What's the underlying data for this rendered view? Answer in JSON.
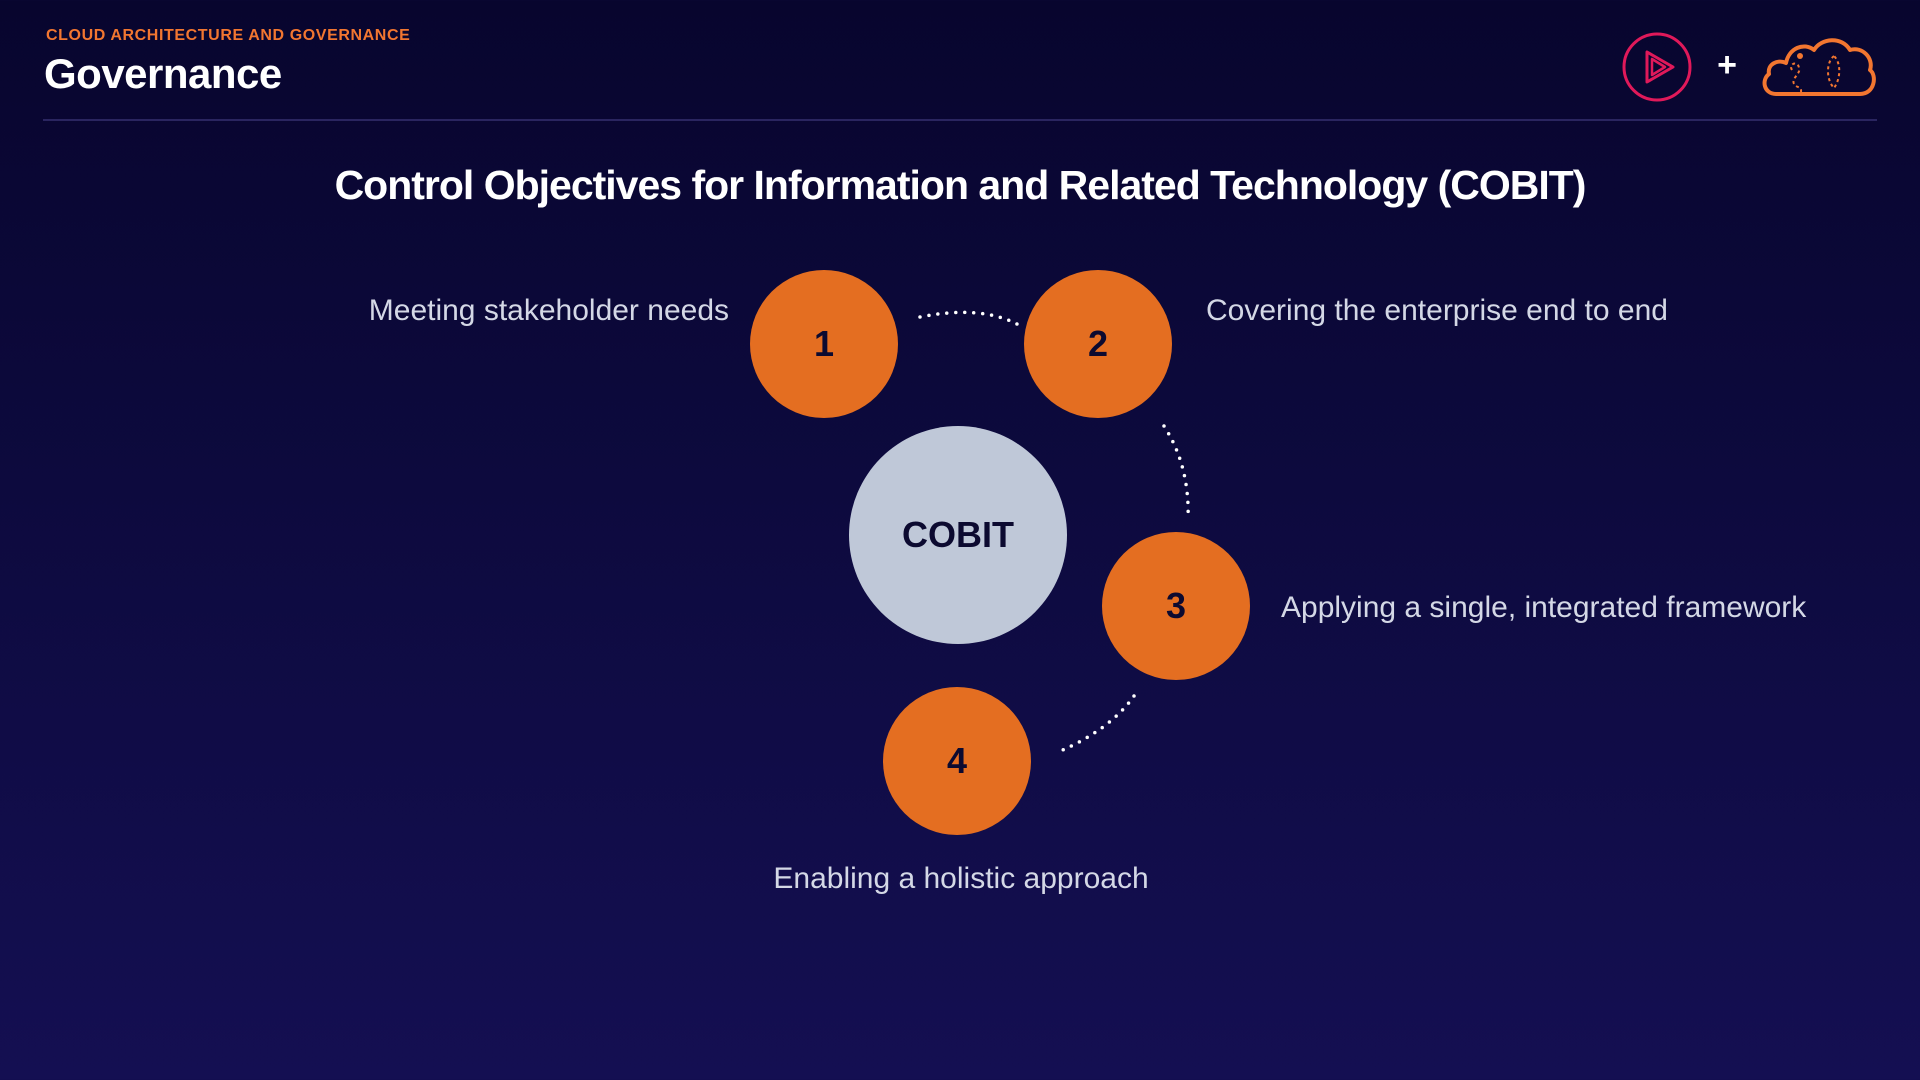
{
  "header": {
    "eyebrow": "CLOUD ARCHITECTURE AND GOVERNANCE",
    "title": "Governance",
    "plus_sign": "+"
  },
  "slide": {
    "heading": "Control Objectives for Information and Related Technology (COBIT)"
  },
  "diagram": {
    "hub": "COBIT",
    "nodes": [
      {
        "number": "1",
        "label": "Meeting stakeholder needs"
      },
      {
        "number": "2",
        "label": "Covering the enterprise end to end"
      },
      {
        "number": "3",
        "label": "Applying a single, integrated framework"
      },
      {
        "number": "4",
        "label": "Enabling a holistic approach"
      }
    ]
  },
  "colors": {
    "background_top": "#08052e",
    "background_bottom": "#140f52",
    "accent_orange": "#e46e21",
    "eyebrow_orange": "#f27630",
    "hub_fill": "#bfc8d8",
    "node_text": "#0c0a30",
    "label_text": "#d4d8e6",
    "play_logo_pink": "#e0195a"
  },
  "icons": {
    "brand_logo": "play-icon",
    "partner_logo": "cloud-icon"
  }
}
